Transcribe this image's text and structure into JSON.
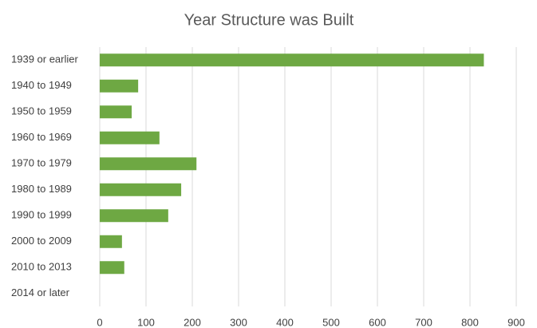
{
  "chart_data": {
    "type": "hbar",
    "title": "Year Structure was Built",
    "categories": [
      "1939 or earlier",
      "1940 to 1949",
      "1950 to 1959",
      "1960 to 1969",
      "1970 to 1979",
      "1980 to 1989",
      "1990 to 1999",
      "2000 to 2009",
      "2010 to 2013",
      "2014 or later"
    ],
    "values": [
      830,
      83,
      69,
      129,
      209,
      176,
      148,
      48,
      53,
      0
    ],
    "color": "#6ea843",
    "xlim": [
      0,
      900
    ],
    "xticks": [
      0,
      100,
      200,
      300,
      400,
      500,
      600,
      700,
      800,
      900
    ],
    "grid": true
  }
}
